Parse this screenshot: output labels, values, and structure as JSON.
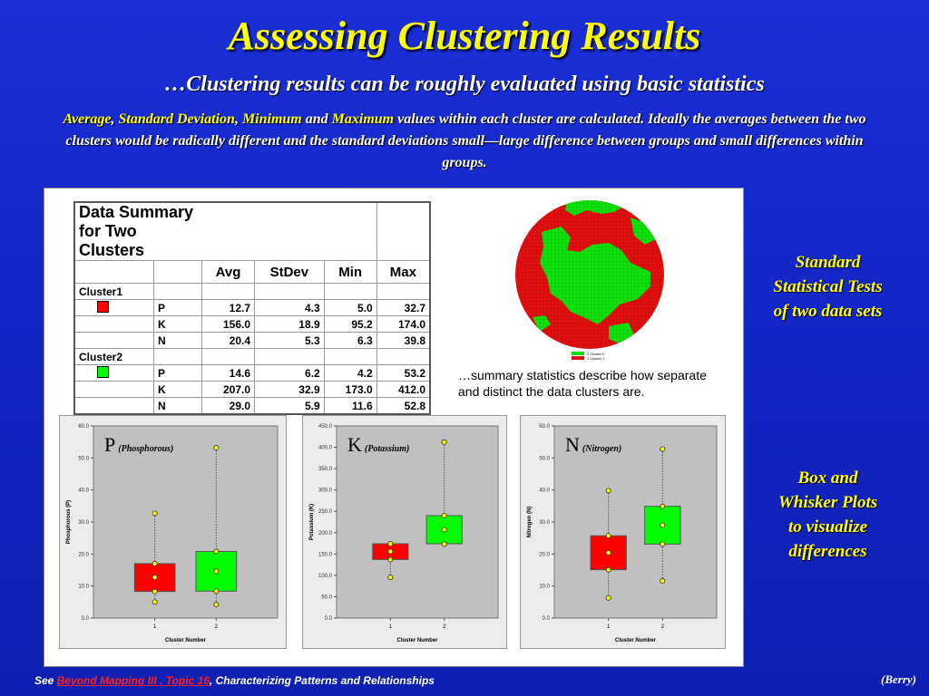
{
  "slide": {
    "title": "Assessing Clustering Results",
    "subtitle": "…Clustering results can be roughly evaluated using basic statistics",
    "description": {
      "avg": "Average",
      "sep1": ", ",
      "stdev": "Standard Deviation",
      "sep2": ", ",
      "min": "Minimum",
      "and": " and ",
      "max": "Maximum",
      "rest": " values within each cluster are calculated.  Ideally the averages between the two clusters would be radically different and the standard deviations small—large difference between groups and small differences within groups."
    },
    "side_note_1": [
      "Standard",
      "Statistical Tests",
      "of two data sets"
    ],
    "side_note_2": [
      "Box and",
      "Whisker Plots",
      "to visualize",
      "differences"
    ],
    "footer": {
      "prefix": "See ",
      "link": "Beyond Mapping III , Topic 16",
      "suffix": ", Characterizing Patterns and Relationships"
    },
    "credit": "(Berry)"
  },
  "summary_table": {
    "title": "Data Summary for Two Clusters",
    "columns": [
      "Avg",
      "StDev",
      "Min",
      "Max"
    ],
    "clusters": [
      {
        "name": "Cluster1",
        "color": "#ff0000",
        "rows": [
          {
            "var": "P",
            "avg": "12.7",
            "stdev": "4.3",
            "min": "5.0",
            "max": "32.7"
          },
          {
            "var": "K",
            "avg": "156.0",
            "stdev": "18.9",
            "min": "95.2",
            "max": "174.0"
          },
          {
            "var": "N",
            "avg": "20.4",
            "stdev": "5.3",
            "min": "6.3",
            "max": "39.8"
          }
        ]
      },
      {
        "name": "Cluster2",
        "color": "#00ff00",
        "rows": [
          {
            "var": "P",
            "avg": "14.6",
            "stdev": "6.2",
            "min": "4.2",
            "max": "53.2"
          },
          {
            "var": "K",
            "avg": "207.0",
            "stdev": "32.9",
            "min": "173.0",
            "max": "412.0"
          },
          {
            "var": "N",
            "avg": "29.0",
            "stdev": "5.9",
            "min": "11.6",
            "max": "52.8"
          }
        ]
      }
    ]
  },
  "map": {
    "legend": [
      "2 Cluster 2",
      "1 Cluster 1"
    ],
    "colors": {
      "cluster1": "#ff0000",
      "cluster2": "#00ff00"
    }
  },
  "summary_note": "…summary statistics describe how separate and distinct the data clusters are.",
  "chart_data": [
    {
      "type": "box",
      "title_letter": "P",
      "title_rest": "(Phosphorous)",
      "ylabel": "Phosphorous (P)",
      "xlabel": "Cluster Number",
      "ylim": [
        0,
        60
      ],
      "yticks": [
        "0.0",
        "10.0",
        "20.0",
        "30.0",
        "40.0",
        "50.0",
        "60.0"
      ],
      "categories": [
        "1",
        "2"
      ],
      "boxes": [
        {
          "q1": 8.3,
          "q3": 17.0,
          "points": [
            5.0,
            8.3,
            12.7,
            17.0,
            32.7
          ],
          "color": "#ff0000"
        },
        {
          "q1": 8.4,
          "q3": 20.8,
          "points": [
            4.2,
            8.4,
            14.6,
            20.8,
            53.2
          ],
          "color": "#00ff00"
        }
      ]
    },
    {
      "type": "box",
      "title_letter": "K",
      "title_rest": "(Potassium)",
      "ylabel": "Potassium (K)",
      "xlabel": "Cluster Number",
      "ylim": [
        0,
        450
      ],
      "yticks": [
        "0.0",
        "50.0",
        "100.0",
        "150.0",
        "200.0",
        "250.0",
        "300.0",
        "350.0",
        "400.0",
        "450.0"
      ],
      "categories": [
        "1",
        "2"
      ],
      "boxes": [
        {
          "q1": 137.1,
          "q3": 174.0,
          "points": [
            95.2,
            137.1,
            156.0,
            174.0
          ],
          "color": "#ff0000"
        },
        {
          "q1": 174.1,
          "q3": 239.9,
          "points": [
            173.0,
            207.0,
            239.9,
            412.0
          ],
          "color": "#00ff00"
        }
      ]
    },
    {
      "type": "box",
      "title_letter": "N",
      "title_rest": "(Nitrogen)",
      "ylabel": "Nitrogen (N)",
      "xlabel": "Cluster Number",
      "ylim": [
        0,
        60
      ],
      "yticks": [
        "0.0",
        "10.0",
        "20.0",
        "30.0",
        "40.0",
        "50.0",
        "60.0"
      ],
      "categories": [
        "1",
        "2"
      ],
      "boxes": [
        {
          "q1": 15.1,
          "q3": 25.7,
          "points": [
            6.3,
            15.1,
            20.4,
            25.7,
            39.8
          ],
          "color": "#ff0000"
        },
        {
          "q1": 23.1,
          "q3": 34.9,
          "points": [
            11.6,
            23.1,
            29.0,
            34.9,
            52.8
          ],
          "color": "#00ff00"
        }
      ]
    }
  ]
}
